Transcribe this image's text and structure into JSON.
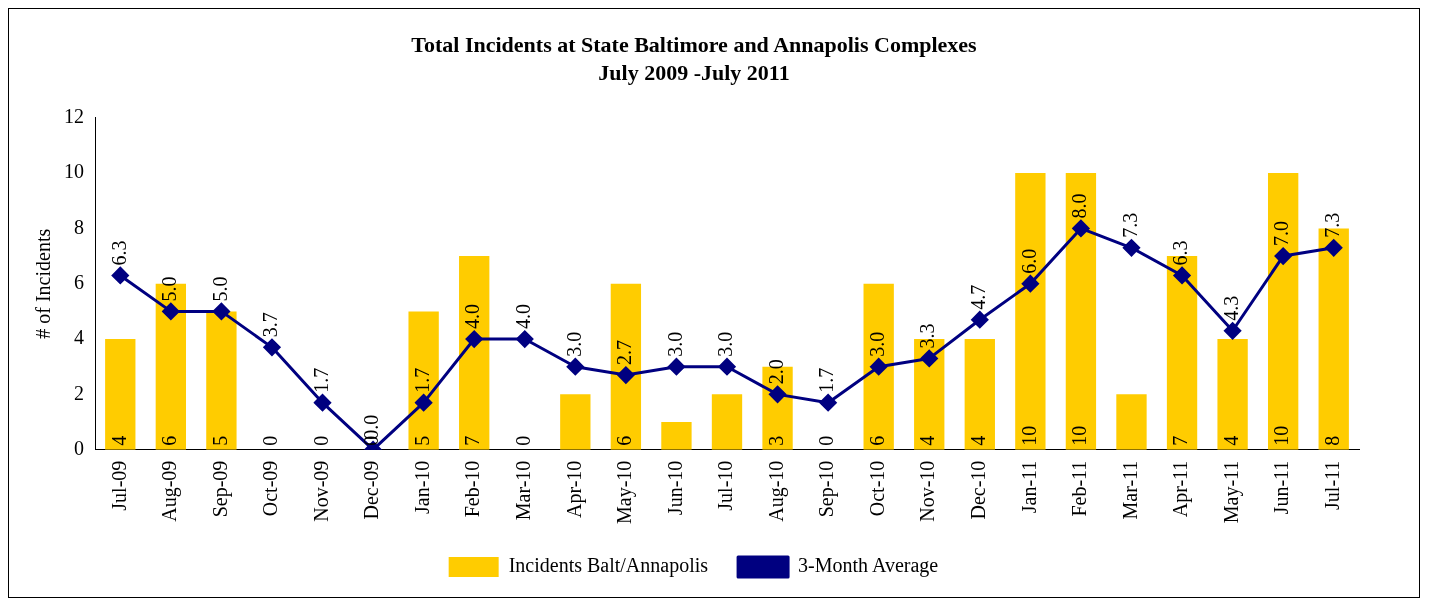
{
  "chart_data": {
    "type": "bar",
    "title": "Total Incidents at State Baltimore and Annapolis Complexes",
    "subtitle": "July 2009 -July 2011",
    "ylabel": "# of Incidents",
    "categories": [
      "Jul-09",
      "Aug-09",
      "Sep-09",
      "Oct-09",
      "Nov-09",
      "Dec-09",
      "Jan-10",
      "Feb-10",
      "Mar-10",
      "Apr-10",
      "May-10",
      "Jun-10",
      "Jul-10",
      "Aug-10",
      "Sep-10",
      "Oct-10",
      "Nov-10",
      "Dec-10",
      "Jan-11",
      "Feb-11",
      "Mar-11",
      "Apr-11",
      "May-11",
      "Jun-11",
      "Jul-11"
    ],
    "series": [
      {
        "name": "Incidents Balt/Annapolis",
        "color": "#ffcc00",
        "values": [
          4,
          6,
          5,
          0,
          0,
          0,
          5,
          7,
          0,
          2,
          6,
          1,
          2,
          3,
          0,
          6,
          4,
          4,
          10,
          10,
          2,
          7,
          4,
          10,
          8
        ],
        "value_labels": [
          "4",
          "6",
          "5",
          "0",
          "0",
          "0",
          "5",
          "7",
          "0",
          null,
          "6",
          null,
          null,
          "3",
          "0",
          "6",
          "4",
          "4",
          "10",
          "10",
          null,
          "7",
          "4",
          "10",
          "8"
        ]
      },
      {
        "name": "3-Month Average",
        "type": "line",
        "color": "#000080",
        "marker": "diamond",
        "values": [
          6.3,
          5.0,
          5.0,
          3.7,
          1.7,
          0.0,
          1.7,
          4.0,
          4.0,
          3.0,
          2.7,
          3.0,
          3.0,
          2.0,
          1.7,
          3.0,
          3.3,
          4.7,
          6.0,
          8.0,
          7.3,
          6.3,
          4.3,
          7.0,
          7.3
        ],
        "value_labels": [
          "6.3",
          "5.0",
          "5.0",
          "3.7",
          "1.7",
          "0.0",
          "1.7",
          "4.0",
          "4.0",
          "3.0",
          "2.7",
          "3.0",
          "3.0",
          "2.0",
          "1.7",
          "3.0",
          "3.3",
          "4.7",
          "6.0",
          "8.0",
          "7.3",
          "6.3",
          "4.3",
          "7.0",
          "7.3"
        ]
      }
    ],
    "ylim": [
      0,
      12
    ],
    "yticks": [
      0,
      2,
      4,
      6,
      8,
      10,
      12
    ],
    "grid": false,
    "legend": "bottom"
  }
}
